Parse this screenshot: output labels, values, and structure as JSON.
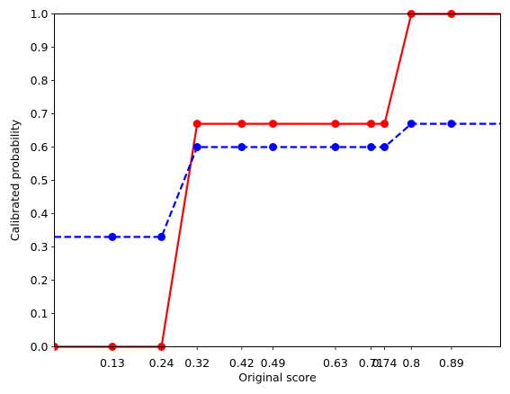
{
  "chart_data": {
    "type": "line",
    "xlabel": "Original score",
    "ylabel": "Calibrated probability",
    "xlim": [
      0.0,
      1.0
    ],
    "ylim": [
      0.0,
      1.0
    ],
    "xticks": [
      0.13,
      0.24,
      0.32,
      0.42,
      0.49,
      0.63,
      0.71,
      0.74,
      0.8,
      0.89
    ],
    "xtick_labels": [
      "0.13",
      "0.24",
      "0.32",
      "0.42",
      "0.49",
      "0.63",
      "0.71",
      "0.74",
      "0.8",
      "0.89"
    ],
    "yticks": [
      0.0,
      0.1,
      0.2,
      0.3,
      0.4,
      0.5,
      0.6,
      0.7,
      0.8,
      0.9,
      1.0
    ],
    "ytick_labels": [
      "0.0",
      "0.1",
      "0.2",
      "0.3",
      "0.4",
      "0.5",
      "0.6",
      "0.7",
      "0.8",
      "0.9",
      "1.0"
    ],
    "grid": false,
    "legend": "none",
    "series": [
      {
        "color": "#ff0000",
        "line_style": "solid",
        "marker": "circle",
        "line_x": [
          0.0,
          0.13,
          0.24,
          0.32,
          0.42,
          0.49,
          0.63,
          0.71,
          0.74,
          0.8,
          0.89,
          1.0
        ],
        "line_y": [
          0.0,
          0.0,
          0.0,
          0.67,
          0.67,
          0.67,
          0.67,
          0.67,
          0.67,
          1.0,
          1.0,
          1.0
        ],
        "points_x": [
          0.0,
          0.13,
          0.24,
          0.32,
          0.42,
          0.49,
          0.63,
          0.71,
          0.74,
          0.8,
          0.89
        ],
        "points_y": [
          0.0,
          0.0,
          0.0,
          0.67,
          0.67,
          0.67,
          0.67,
          0.67,
          0.67,
          1.0,
          1.0
        ]
      },
      {
        "color": "#0000ff",
        "line_style": "dashed",
        "marker": "circle",
        "line_x": [
          0.0,
          0.13,
          0.24,
          0.32,
          0.42,
          0.49,
          0.63,
          0.71,
          0.74,
          0.8,
          0.89,
          1.0
        ],
        "line_y": [
          0.33,
          0.33,
          0.33,
          0.6,
          0.6,
          0.6,
          0.6,
          0.6,
          0.6,
          0.67,
          0.67,
          0.67
        ],
        "points_x": [
          0.13,
          0.24,
          0.32,
          0.42,
          0.49,
          0.63,
          0.71,
          0.74,
          0.8,
          0.89
        ],
        "points_y": [
          0.33,
          0.33,
          0.6,
          0.6,
          0.6,
          0.6,
          0.6,
          0.6,
          0.67,
          0.67
        ]
      }
    ]
  }
}
